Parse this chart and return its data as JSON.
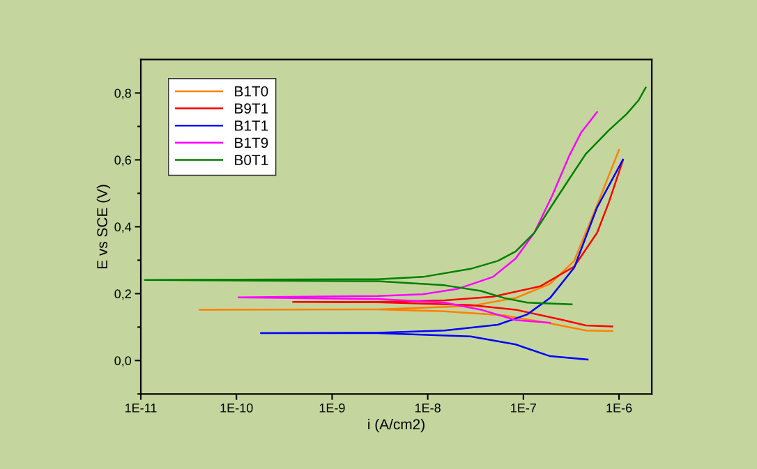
{
  "chart_data": {
    "type": "line",
    "xlabel": "i (A/cm2)",
    "ylabel": "E vs SCE (V)",
    "log": "x",
    "xlim": [
      1e-11,
      2.2e-06
    ],
    "xticks": [
      {
        "value": 1e-11,
        "label": "1E-11"
      },
      {
        "value": 1e-10,
        "label": "1E-10"
      },
      {
        "value": 1e-09,
        "label": "1E-9"
      },
      {
        "value": 1e-08,
        "label": "1E-8"
      },
      {
        "value": 1e-07,
        "label": "1E-7"
      },
      {
        "value": 1e-06,
        "label": "1E-6"
      }
    ],
    "ylim": [
      -0.1,
      0.9
    ],
    "yticks": [
      {
        "value": -0.1,
        "label": null
      },
      {
        "value": 0.0,
        "label": "0,0"
      },
      {
        "value": 0.1,
        "label": null
      },
      {
        "value": 0.2,
        "label": "0,2"
      },
      {
        "value": 0.3,
        "label": null
      },
      {
        "value": 0.4,
        "label": "0,4"
      },
      {
        "value": 0.5,
        "label": null
      },
      {
        "value": 0.6,
        "label": "0,6"
      },
      {
        "value": 0.7,
        "label": null
      },
      {
        "value": 0.8,
        "label": "0,8"
      }
    ],
    "grid": false,
    "legend": "top left",
    "marker": "none",
    "line_style": "solid",
    "series": [
      {
        "name": "B1T0",
        "color": "#ff8000",
        "x": [
          8.5e-07,
          4.5e-07,
          1.9e-07,
          6.3e-08,
          1.5e-08,
          3e-09,
          4.1e-11,
          3e-09,
          2.8e-08,
          8.3e-08,
          1.9e-07,
          3.4e-07,
          5.9e-07,
          1e-06
        ],
        "values": [
          0.088,
          0.09,
          0.111,
          0.135,
          0.147,
          0.153,
          0.152,
          0.153,
          0.163,
          0.187,
          0.229,
          0.298,
          0.465,
          0.63
        ]
      },
      {
        "name": "B9T1",
        "color": "#ff0000",
        "x": [
          8.5e-07,
          4.5e-07,
          2.6e-07,
          8.3e-08,
          2.8e-08,
          3e-09,
          3.9e-10,
          3e-09,
          1.5e-08,
          4.8e-08,
          1.5e-07,
          3.4e-07,
          5.9e-07,
          7.8e-07,
          1.1e-06
        ],
        "values": [
          0.102,
          0.105,
          0.121,
          0.152,
          0.166,
          0.174,
          0.175,
          0.175,
          0.18,
          0.191,
          0.222,
          0.281,
          0.382,
          0.472,
          0.599
        ]
      },
      {
        "name": "B1T1",
        "color": "#0000ff",
        "x": [
          4.7e-07,
          1.9e-07,
          8.3e-08,
          2.8e-08,
          3e-09,
          1.8e-10,
          3e-09,
          1.5e-08,
          5.4e-08,
          1.1e-07,
          1.9e-07,
          3.4e-07,
          5.9e-07,
          1.1e-06
        ],
        "values": [
          0.003,
          0.013,
          0.048,
          0.072,
          0.082,
          0.082,
          0.083,
          0.09,
          0.107,
          0.138,
          0.187,
          0.278,
          0.458,
          0.601
        ]
      },
      {
        "name": "B1T9",
        "color": "#ff00ff",
        "x": [
          1.9e-07,
          8.3e-08,
          3.6e-08,
          1.5e-08,
          3e-09,
          1.05e-10,
          3e-09,
          8.9e-09,
          2.1e-08,
          4.8e-08,
          8.3e-08,
          1.3e-07,
          2e-07,
          3e-07,
          4e-07,
          5.9e-07
        ],
        "values": [
          0.113,
          0.121,
          0.152,
          0.173,
          0.184,
          0.189,
          0.193,
          0.198,
          0.215,
          0.25,
          0.305,
          0.382,
          0.493,
          0.611,
          0.681,
          0.743
        ]
      },
      {
        "name": "B0T1",
        "color": "#008000",
        "x": [
          3.2e-07,
          1.1e-07,
          6.3e-08,
          3.6e-08,
          1.5e-08,
          3e-09,
          1.1e-11,
          3e-09,
          8.9e-09,
          2.8e-08,
          5.4e-08,
          8.3e-08,
          1.3e-07,
          2e-07,
          3e-07,
          4.5e-07,
          7.8e-07,
          1.2e-06,
          1.6e-06,
          1.9e-06
        ],
        "values": [
          0.168,
          0.173,
          0.187,
          0.208,
          0.225,
          0.237,
          0.241,
          0.243,
          0.25,
          0.274,
          0.298,
          0.326,
          0.382,
          0.465,
          0.542,
          0.618,
          0.688,
          0.737,
          0.778,
          0.816
        ]
      }
    ]
  }
}
